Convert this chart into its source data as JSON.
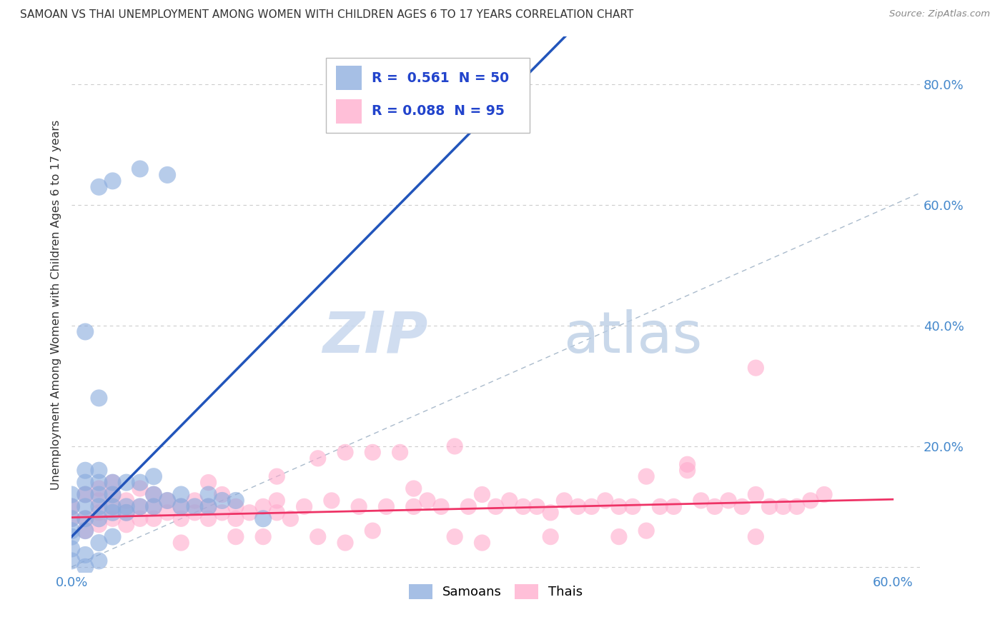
{
  "title": "SAMOAN VS THAI UNEMPLOYMENT AMONG WOMEN WITH CHILDREN AGES 6 TO 17 YEARS CORRELATION CHART",
  "source": "Source: ZipAtlas.com",
  "ylabel": "Unemployment Among Women with Children Ages 6 to 17 years",
  "xlim": [
    0.0,
    0.62
  ],
  "ylim": [
    -0.01,
    0.88
  ],
  "x_ticks": [
    0.0,
    0.1,
    0.2,
    0.3,
    0.4,
    0.5,
    0.6
  ],
  "x_tick_labels": [
    "0.0%",
    "",
    "",
    "",
    "",
    "",
    "60.0%"
  ],
  "y_ticks": [
    0.0,
    0.2,
    0.4,
    0.6,
    0.8
  ],
  "y_tick_labels": [
    "",
    "20.0%",
    "40.0%",
    "60.0%",
    "80.0%"
  ],
  "samoan_color": "#88aadd",
  "thai_color": "#ffaacc",
  "samoan_R": "0.561",
  "samoan_N": "50",
  "thai_R": "0.088",
  "thai_N": "95",
  "diagonal_color": "#aabbcc",
  "samoan_line_color": "#2255bb",
  "thai_line_color": "#ee3366",
  "watermark_zip": "ZIP",
  "watermark_atlas": "atlas",
  "background_color": "#ffffff",
  "samoan_scatter_x": [
    0.0,
    0.0,
    0.0,
    0.0,
    0.01,
    0.01,
    0.01,
    0.01,
    0.01,
    0.02,
    0.02,
    0.02,
    0.02,
    0.02,
    0.02,
    0.03,
    0.03,
    0.03,
    0.03,
    0.04,
    0.04,
    0.04,
    0.05,
    0.05,
    0.06,
    0.06,
    0.06,
    0.07,
    0.08,
    0.08,
    0.09,
    0.1,
    0.1,
    0.11,
    0.12,
    0.01,
    0.02,
    0.03,
    0.05,
    0.07,
    0.0,
    0.01,
    0.0,
    0.02,
    0.01,
    0.0,
    0.01,
    0.02,
    0.03,
    0.14
  ],
  "samoan_scatter_y": [
    0.06,
    0.08,
    0.1,
    0.12,
    0.08,
    0.1,
    0.12,
    0.14,
    0.16,
    0.08,
    0.1,
    0.12,
    0.14,
    0.16,
    0.28,
    0.09,
    0.1,
    0.12,
    0.14,
    0.09,
    0.1,
    0.14,
    0.1,
    0.14,
    0.1,
    0.12,
    0.15,
    0.11,
    0.1,
    0.12,
    0.1,
    0.1,
    0.12,
    0.11,
    0.11,
    0.39,
    0.63,
    0.64,
    0.66,
    0.65,
    0.03,
    0.02,
    0.01,
    0.01,
    0.0,
    0.05,
    0.06,
    0.04,
    0.05,
    0.08
  ],
  "thai_scatter_x": [
    0.0,
    0.0,
    0.01,
    0.01,
    0.01,
    0.02,
    0.02,
    0.02,
    0.02,
    0.03,
    0.03,
    0.03,
    0.03,
    0.04,
    0.04,
    0.04,
    0.05,
    0.05,
    0.05,
    0.06,
    0.06,
    0.06,
    0.07,
    0.07,
    0.08,
    0.08,
    0.09,
    0.09,
    0.1,
    0.1,
    0.11,
    0.11,
    0.12,
    0.12,
    0.13,
    0.14,
    0.15,
    0.15,
    0.16,
    0.17,
    0.18,
    0.19,
    0.2,
    0.21,
    0.22,
    0.23,
    0.24,
    0.25,
    0.26,
    0.27,
    0.28,
    0.29,
    0.3,
    0.31,
    0.32,
    0.33,
    0.34,
    0.35,
    0.36,
    0.37,
    0.38,
    0.39,
    0.4,
    0.41,
    0.42,
    0.43,
    0.44,
    0.45,
    0.46,
    0.47,
    0.48,
    0.49,
    0.5,
    0.51,
    0.52,
    0.53,
    0.54,
    0.55,
    0.12,
    0.18,
    0.22,
    0.28,
    0.35,
    0.42,
    0.5,
    0.08,
    0.14,
    0.2,
    0.3,
    0.4,
    0.1,
    0.15,
    0.25,
    0.45,
    0.5
  ],
  "thai_scatter_y": [
    0.08,
    0.1,
    0.06,
    0.08,
    0.12,
    0.07,
    0.09,
    0.11,
    0.13,
    0.08,
    0.1,
    0.12,
    0.14,
    0.07,
    0.09,
    0.11,
    0.08,
    0.1,
    0.13,
    0.08,
    0.1,
    0.12,
    0.09,
    0.11,
    0.08,
    0.1,
    0.09,
    0.11,
    0.08,
    0.1,
    0.09,
    0.12,
    0.08,
    0.1,
    0.09,
    0.1,
    0.09,
    0.11,
    0.08,
    0.1,
    0.18,
    0.11,
    0.19,
    0.1,
    0.19,
    0.1,
    0.19,
    0.1,
    0.11,
    0.1,
    0.2,
    0.1,
    0.12,
    0.1,
    0.11,
    0.1,
    0.1,
    0.09,
    0.11,
    0.1,
    0.1,
    0.11,
    0.1,
    0.1,
    0.15,
    0.1,
    0.1,
    0.17,
    0.11,
    0.1,
    0.11,
    0.1,
    0.12,
    0.1,
    0.1,
    0.1,
    0.11,
    0.12,
    0.05,
    0.05,
    0.06,
    0.05,
    0.05,
    0.06,
    0.05,
    0.04,
    0.05,
    0.04,
    0.04,
    0.05,
    0.14,
    0.15,
    0.13,
    0.16,
    0.33
  ]
}
